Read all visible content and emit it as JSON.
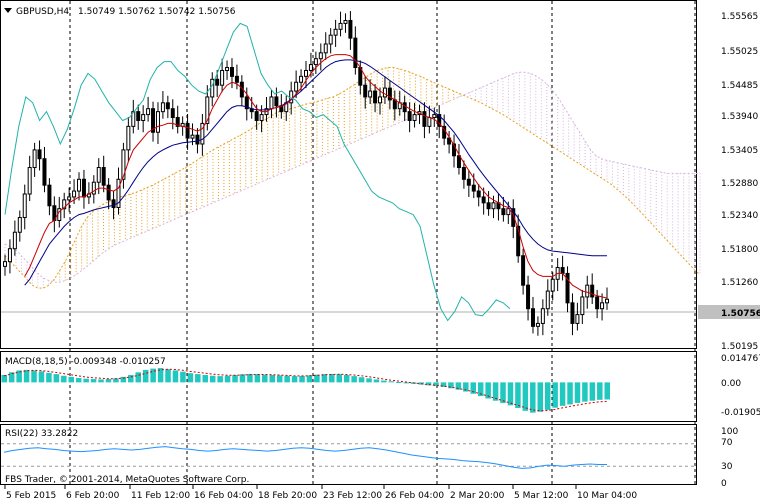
{
  "header": {
    "symbol": "GBPUSD,H4",
    "ohlc": "1.50749 1.50762 1.50742 1.50756"
  },
  "colors": {
    "background": "#ffffff",
    "bull": "#000000",
    "bear": "#000000",
    "tenkan": "#cc0000",
    "kijun": "#00008b",
    "chikou": "#20b2aa",
    "kumo_up": "#e8a020",
    "kumo_down": "#d8b4e2",
    "macd_hist": "#20c8c0",
    "macd_signal": "#cc0000",
    "rsi_line": "#1e90ff",
    "price_tag_bg": "#c0c0c0",
    "grid": "#000000"
  },
  "time_axis": {
    "labels": [
      "5 Feb 2015",
      "6 Feb 20:00",
      "11 Feb 12:00",
      "16 Feb 04:00",
      "18 Feb 20:00",
      "23 Feb 12:00",
      "26 Feb 04:00",
      "2 Mar 20:00",
      "5 Mar 12:00",
      "10 Mar 04:00"
    ]
  },
  "footer": {
    "copyright": "FBS Trader, © 2001-2014, MetaQuotes Software Corp."
  },
  "chart_data": [
    {
      "type": "candlestick",
      "title": "GBPUSD,H4 1.50749 1.50762 1.50742 1.50756",
      "y_ticks": [
        "1.55565",
        "1.55025",
        "1.54485",
        "1.53940",
        "1.53405",
        "1.52880",
        "1.52340",
        "1.51800",
        "1.51260",
        "1.50756",
        "1.50195"
      ],
      "ylim": [
        1.5,
        1.5578
      ],
      "current_price": "1.50756",
      "close_path": [
        1.514,
        1.5162,
        1.519,
        1.5215,
        1.5255,
        1.53,
        1.533,
        1.5315,
        1.527,
        1.5235,
        1.521,
        1.523,
        1.5245,
        1.525,
        1.526,
        1.528,
        1.525,
        1.5255,
        1.5275,
        1.53,
        1.527,
        1.5245,
        1.5232,
        1.528,
        1.533,
        1.537,
        1.5395,
        1.538,
        1.539,
        1.54,
        1.536,
        1.5395,
        1.541,
        1.54,
        1.5385,
        1.537,
        1.5375,
        1.535,
        1.5355,
        1.534,
        1.5375,
        1.542,
        1.545,
        1.544,
        1.5465,
        1.547,
        1.5455,
        1.5445,
        1.542,
        1.54,
        1.5395,
        1.538,
        1.539,
        1.54,
        1.542,
        1.5405,
        1.5395,
        1.541,
        1.543,
        1.5445,
        1.5455,
        1.5465,
        1.5475,
        1.5485,
        1.5495,
        1.551,
        1.5525,
        1.5535,
        1.5545,
        1.555,
        1.552,
        1.547,
        1.544,
        1.542,
        1.543,
        1.541,
        1.542,
        1.5435,
        1.5415,
        1.54,
        1.541,
        1.5395,
        1.538,
        1.539,
        1.5395,
        1.537,
        1.5385,
        1.539,
        1.537,
        1.535,
        1.534,
        1.532,
        1.53,
        1.528,
        1.527,
        1.526,
        1.525,
        1.524,
        1.523,
        1.524,
        1.523,
        1.522,
        1.523,
        1.52,
        1.515,
        1.51,
        1.506,
        1.503,
        1.5035,
        1.506,
        1.509,
        1.511,
        1.513,
        1.512,
        1.507,
        1.5035,
        1.505,
        1.508,
        1.51,
        1.508,
        1.506,
        1.507,
        1.5076
      ],
      "tenkan": [
        null,
        null,
        null,
        null,
        1.5115,
        1.513,
        1.515,
        1.517,
        1.519,
        1.5205,
        1.521,
        1.5225,
        1.5232,
        1.524,
        1.5245,
        1.525,
        1.525,
        1.5255,
        1.526,
        1.5265,
        1.5265,
        1.5262,
        1.526,
        1.5265,
        1.5285,
        1.531,
        1.533,
        1.534,
        1.535,
        1.536,
        1.5365,
        1.537,
        1.5372,
        1.5375,
        1.5375,
        1.5372,
        1.537,
        1.5368,
        1.5365,
        1.5362,
        1.5366,
        1.538,
        1.54,
        1.5415,
        1.543,
        1.544,
        1.5445,
        1.5442,
        1.5435,
        1.5425,
        1.5412,
        1.54,
        1.5395,
        1.5395,
        1.54,
        1.5402,
        1.5404,
        1.5408,
        1.5415,
        1.5425,
        1.5435,
        1.5448,
        1.546,
        1.547,
        1.5478,
        1.5485,
        1.549,
        1.5492,
        1.5492,
        1.5492,
        1.549,
        1.5482,
        1.547,
        1.5455,
        1.5445,
        1.5438,
        1.543,
        1.5425,
        1.542,
        1.5415,
        1.541,
        1.5405,
        1.54,
        1.5395,
        1.5392,
        1.5388,
        1.5385,
        1.5382,
        1.5375,
        1.5365,
        1.5352,
        1.5338,
        1.5322,
        1.5308,
        1.5295,
        1.5282,
        1.527,
        1.526,
        1.525,
        1.5245,
        1.524,
        1.5235,
        1.5232,
        1.522,
        1.5195,
        1.5165,
        1.514,
        1.5125,
        1.5118,
        1.5115,
        1.5115,
        1.5115,
        1.512,
        1.512,
        1.511,
        1.51,
        1.5095,
        1.509,
        1.5088,
        1.5085,
        1.5082,
        1.508,
        1.5078
      ],
      "kijun": [
        null,
        null,
        null,
        null,
        1.51,
        1.511,
        1.5125,
        1.514,
        1.5155,
        1.517,
        1.518,
        1.519,
        1.52,
        1.5208,
        1.5215,
        1.522,
        1.5222,
        1.5225,
        1.5228,
        1.523,
        1.5232,
        1.5234,
        1.5236,
        1.524,
        1.525,
        1.5262,
        1.5275,
        1.5288,
        1.53,
        1.531,
        1.5318,
        1.5325,
        1.533,
        1.5334,
        1.5338,
        1.534,
        1.5342,
        1.5343,
        1.5344,
        1.5345,
        1.5348,
        1.5355,
        1.5365,
        1.5375,
        1.5385,
        1.5395,
        1.5402,
        1.5405,
        1.5405,
        1.5403,
        1.54,
        1.5398,
        1.5398,
        1.5398,
        1.54,
        1.5402,
        1.5405,
        1.541,
        1.5416,
        1.5423,
        1.543,
        1.5438,
        1.5446,
        1.5454,
        1.5462,
        1.547,
        1.5476,
        1.548,
        1.5482,
        1.5483,
        1.5483,
        1.5482,
        1.548,
        1.5477,
        1.5472,
        1.5466,
        1.546,
        1.5454,
        1.5448,
        1.5442,
        1.5436,
        1.543,
        1.5424,
        1.5418,
        1.5412,
        1.5406,
        1.54,
        1.5394,
        1.5388,
        1.538,
        1.537,
        1.536,
        1.5348,
        1.5335,
        1.5322,
        1.531,
        1.5298,
        1.5287,
        1.5276,
        1.5266,
        1.5256,
        1.5246,
        1.5236,
        1.5226,
        1.5214,
        1.52,
        1.5188,
        1.5178,
        1.517,
        1.5164,
        1.516,
        1.5158,
        1.5157,
        1.5156,
        1.5155,
        1.5154,
        1.5153,
        1.5152,
        1.5151,
        1.515,
        1.515,
        1.515,
        1.515
      ],
      "chikou": [
        1.522,
        1.53,
        1.537,
        1.542,
        1.541,
        1.538,
        1.5395,
        1.537,
        1.534,
        1.5365,
        1.54,
        1.544,
        1.546,
        1.545,
        1.543,
        1.541,
        1.5395,
        1.538,
        1.5385,
        1.54,
        1.5415,
        1.545,
        1.547,
        1.548,
        1.548,
        1.5465,
        1.5455,
        1.544,
        1.543,
        1.5425,
        1.544,
        1.547,
        1.55,
        1.553,
        1.5545,
        1.554,
        1.55,
        1.546,
        1.544,
        1.5425,
        1.543,
        1.542,
        1.5415,
        1.54,
        1.5395,
        1.5385,
        1.539,
        1.538,
        1.537,
        1.534,
        1.532,
        1.53,
        1.528,
        1.526,
        1.525,
        1.5245,
        1.524,
        1.523,
        1.5225,
        1.522,
        1.52,
        1.515,
        1.51,
        1.506,
        1.504,
        1.5055,
        1.508,
        1.507,
        1.505,
        1.5048,
        1.506,
        1.5075,
        1.507,
        1.506
      ],
      "kumo": {
        "span_a": [
          1.515,
          1.514,
          1.513,
          1.512,
          1.511,
          1.51,
          1.5095,
          1.5095,
          1.51,
          1.511,
          1.5125,
          1.514,
          1.516,
          1.518,
          1.52,
          1.5215,
          1.5225,
          1.5232,
          1.5238,
          1.5242,
          1.5246,
          1.525,
          1.5252,
          1.5255,
          1.5258,
          1.5262,
          1.5266,
          1.527,
          1.5275,
          1.528,
          1.5285,
          1.529,
          1.5295,
          1.53,
          1.5306,
          1.5312,
          1.5318,
          1.5324,
          1.533,
          1.5335,
          1.534,
          1.5345,
          1.535,
          1.5355,
          1.536,
          1.5366,
          1.5372,
          1.5378,
          1.5384,
          1.539,
          1.5395,
          1.5398,
          1.54,
          1.5402,
          1.5405,
          1.5408,
          1.541,
          1.5412,
          1.5415,
          1.5418,
          1.542,
          1.5425,
          1.543,
          1.5436,
          1.5442,
          1.5448,
          1.5454,
          1.546,
          1.5465,
          1.5468,
          1.547,
          1.547,
          1.5468,
          1.5465,
          1.5462,
          1.5458,
          1.5455,
          1.545,
          1.5446,
          1.5442,
          1.5438,
          1.5434,
          1.543,
          1.5426,
          1.5422,
          1.5418,
          1.5414,
          1.541,
          1.5405,
          1.54,
          1.5395,
          1.539,
          1.5384,
          1.5378,
          1.5372,
          1.5366,
          1.536,
          1.5354,
          1.5348,
          1.5342,
          1.5336,
          1.533,
          1.5324,
          1.5318,
          1.5312,
          1.5306,
          1.53,
          1.5294,
          1.5288,
          1.5282,
          1.5276,
          1.527,
          1.5262,
          1.5254,
          1.5245,
          1.5236,
          1.5226,
          1.5216,
          1.5206,
          1.5196,
          1.5186,
          1.5176,
          1.5166,
          1.5156,
          1.5146,
          1.5136,
          1.5126,
          1.5118
        ],
        "span_b": [
          1.517,
          1.5165,
          1.516,
          1.515,
          1.514,
          1.513,
          1.512,
          1.5112,
          1.5108,
          1.5105,
          1.5105,
          1.5108,
          1.5112,
          1.5118,
          1.5125,
          1.5132,
          1.514,
          1.5148,
          1.5156,
          1.5162,
          1.5168,
          1.5172,
          1.5176,
          1.518,
          1.5184,
          1.5188,
          1.5192,
          1.5196,
          1.52,
          1.5204,
          1.5208,
          1.5212,
          1.5216,
          1.522,
          1.5224,
          1.5228,
          1.5232,
          1.5236,
          1.524,
          1.5244,
          1.5248,
          1.5252,
          1.5256,
          1.526,
          1.5264,
          1.5268,
          1.5272,
          1.5276,
          1.528,
          1.5284,
          1.5288,
          1.5292,
          1.5296,
          1.53,
          1.5304,
          1.5308,
          1.5312,
          1.5316,
          1.532,
          1.5324,
          1.5328,
          1.5332,
          1.5336,
          1.534,
          1.5344,
          1.5348,
          1.5352,
          1.5356,
          1.536,
          1.5364,
          1.5368,
          1.5372,
          1.5376,
          1.538,
          1.5384,
          1.5388,
          1.5392,
          1.5396,
          1.54,
          1.5404,
          1.5408,
          1.5412,
          1.5416,
          1.542,
          1.5424,
          1.5428,
          1.5432,
          1.5436,
          1.544,
          1.5444,
          1.5448,
          1.5452,
          1.5456,
          1.546,
          1.5462,
          1.5462,
          1.546,
          1.5456,
          1.545,
          1.5442,
          1.5432,
          1.542,
          1.5405,
          1.539,
          1.5375,
          1.536,
          1.5345,
          1.533,
          1.532,
          1.5315,
          1.5312,
          1.531,
          1.5308,
          1.5306,
          1.5304,
          1.5302,
          1.53,
          1.5298,
          1.5296,
          1.5294,
          1.5292,
          1.529,
          1.529,
          1.529,
          1.529,
          1.529,
          1.529,
          1.529
        ]
      }
    },
    {
      "type": "bar",
      "title": "MACD(8,18,5) -0.009348 -0.010257",
      "y_ticks": [
        "0.014767",
        "0.00",
        "-0.019052"
      ],
      "ylim": [
        -0.0205,
        0.016
      ],
      "histogram": [
        0.004,
        0.0055,
        0.0065,
        0.0068,
        0.0065,
        0.006,
        0.0052,
        0.0045,
        0.0036,
        0.003,
        0.0024,
        0.002,
        0.0018,
        0.0016,
        0.0018,
        0.0022,
        0.003,
        0.004,
        0.0055,
        0.0068,
        0.0075,
        0.0078,
        0.0072,
        0.0065,
        0.0058,
        0.005,
        0.0045,
        0.004,
        0.0036,
        0.0034,
        0.0036,
        0.004,
        0.0044,
        0.0046,
        0.0045,
        0.0042,
        0.004,
        0.0038,
        0.0036,
        0.0034,
        0.0035,
        0.0038,
        0.0042,
        0.0045,
        0.0046,
        0.0045,
        0.004,
        0.0034,
        0.0028,
        0.0022,
        0.0016,
        0.001,
        0.0006,
        0.0002,
        -0.0004,
        -0.0008,
        -0.0012,
        -0.0016,
        -0.002,
        -0.0025,
        -0.0032,
        -0.004,
        -0.005,
        -0.0062,
        -0.0075,
        -0.0088,
        -0.01,
        -0.0112,
        -0.0125,
        -0.014,
        -0.0155,
        -0.0165,
        -0.016,
        -0.015,
        -0.0138,
        -0.0128,
        -0.012,
        -0.0112,
        -0.0105,
        -0.01,
        -0.0095,
        -0.0093
      ],
      "signal": [
        0.0035,
        0.0046,
        0.0056,
        0.0063,
        0.0066,
        0.0064,
        0.006,
        0.0054,
        0.0048,
        0.0041,
        0.0035,
        0.0029,
        0.0025,
        0.0022,
        0.002,
        0.002,
        0.0023,
        0.0029,
        0.0038,
        0.0049,
        0.006,
        0.0068,
        0.0072,
        0.007,
        0.0066,
        0.006,
        0.0055,
        0.005,
        0.0045,
        0.0041,
        0.0039,
        0.0039,
        0.004,
        0.0042,
        0.0043,
        0.0043,
        0.0042,
        0.004,
        0.0038,
        0.0036,
        0.0035,
        0.0036,
        0.0038,
        0.0041,
        0.0043,
        0.0044,
        0.0043,
        0.004,
        0.0036,
        0.0031,
        0.0025,
        0.0018,
        0.0012,
        0.0007,
        0.0002,
        -0.0003,
        -0.0008,
        -0.0012,
        -0.0016,
        -0.002,
        -0.0026,
        -0.0033,
        -0.0041,
        -0.0051,
        -0.0062,
        -0.0074,
        -0.0087,
        -0.01,
        -0.0112,
        -0.0125,
        -0.0138,
        -0.015,
        -0.0155,
        -0.0153,
        -0.0147,
        -0.0139,
        -0.0131,
        -0.0124,
        -0.0117,
        -0.0111,
        -0.0106,
        -0.0103
      ]
    },
    {
      "type": "line",
      "title": "RSI(22) 33.2822",
      "y_ticks": [
        "100",
        "70",
        "30",
        "0"
      ],
      "ylim": [
        0,
        100
      ],
      "levels": [
        70,
        30
      ],
      "values": [
        55,
        58,
        60,
        62,
        63,
        61,
        60,
        58,
        57,
        56,
        57,
        58,
        60,
        61,
        60,
        59,
        60,
        62,
        64,
        65,
        63,
        61,
        60,
        58,
        57,
        58,
        60,
        61,
        60,
        59,
        58,
        57,
        58,
        60,
        62,
        63,
        62,
        60,
        58,
        57,
        58,
        60,
        62,
        63,
        61,
        59,
        56,
        53,
        50,
        48,
        46,
        44,
        43,
        42,
        40,
        39,
        38,
        36,
        34,
        31,
        28,
        26,
        27,
        30,
        32,
        31,
        30,
        32,
        33,
        34,
        33,
        33
      ]
    }
  ]
}
